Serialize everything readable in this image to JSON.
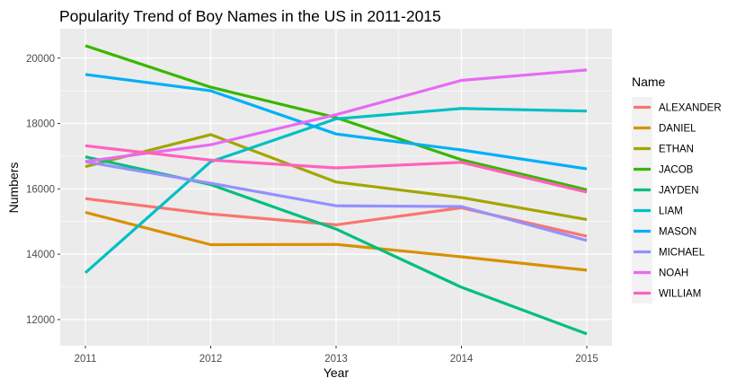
{
  "chart_data": {
    "type": "line",
    "title": "Popularity Trend of Boy Names in the US in 2011-2015",
    "xlabel": "Year",
    "ylabel": "Numbers",
    "x": [
      2011,
      2012,
      2013,
      2014,
      2015
    ],
    "x_ticks": [
      "2011",
      "2012",
      "2013",
      "2014",
      "2015"
    ],
    "y_ticks": [
      "12000",
      "14000",
      "16000",
      "18000",
      "20000"
    ],
    "ylim": [
      11200,
      20900
    ],
    "grid": true,
    "legend_title": "Name",
    "legend_position": "right",
    "series": [
      {
        "name": "ALEXANDER",
        "color": "#F8766D",
        "values": [
          15700,
          15230,
          14900,
          15420,
          14550
        ]
      },
      {
        "name": "DANIEL",
        "color": "#D89000",
        "values": [
          15280,
          14290,
          14300,
          13920,
          13510
        ]
      },
      {
        "name": "ETHAN",
        "color": "#A3A500",
        "values": [
          16680,
          17660,
          16210,
          15730,
          15060
        ]
      },
      {
        "name": "JACOB",
        "color": "#39B600",
        "values": [
          20380,
          19110,
          18180,
          16890,
          15970
        ]
      },
      {
        "name": "JAYDEN",
        "color": "#00BF7D",
        "values": [
          16980,
          16130,
          14770,
          12990,
          11560
        ]
      },
      {
        "name": "LIAM",
        "color": "#00BFC4",
        "values": [
          13430,
          16830,
          18140,
          18460,
          18380
        ]
      },
      {
        "name": "MASON",
        "color": "#00B0F6",
        "values": [
          19500,
          19000,
          17680,
          17190,
          16610
        ]
      },
      {
        "name": "MICHAEL",
        "color": "#9590FF",
        "values": [
          16830,
          16170,
          15480,
          15460,
          14420
        ]
      },
      {
        "name": "NOAH",
        "color": "#E76BF3",
        "values": [
          16840,
          17350,
          18270,
          19320,
          19640
        ]
      },
      {
        "name": "WILLIAM",
        "color": "#FF62BC",
        "values": [
          17320,
          16880,
          16640,
          16810,
          15900
        ]
      }
    ]
  },
  "colors": {
    "panel_background": "#EBEBEB",
    "grid_major": "#FFFFFF"
  }
}
